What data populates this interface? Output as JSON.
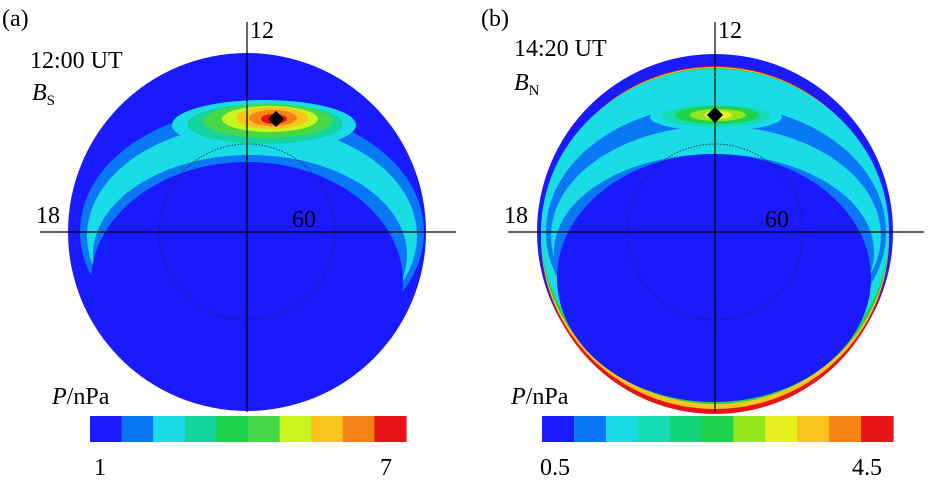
{
  "panels": [
    {
      "id": "a",
      "label": "(a)",
      "time": "12:00 UT",
      "field_main": "B",
      "field_sub": "S",
      "mlt_noon": "12",
      "mlt_dusk": "18",
      "lat_circle": "60",
      "colorbar_var": "P",
      "colorbar_unit": "/nPa",
      "colorbar_min": "1",
      "colorbar_max": "7",
      "colorbar_colors": [
        "#1a1aff",
        "#0a78f5",
        "#19dce6",
        "#14d39e",
        "#1ed34a",
        "#46d846",
        "#c8f51e",
        "#fac41e",
        "#f58214",
        "#e61414"
      ]
    },
    {
      "id": "b",
      "label": "(b)",
      "time": "14:20 UT",
      "field_main": "B",
      "field_sub": "N",
      "mlt_noon": "12",
      "mlt_dusk": "18",
      "lat_circle": "60",
      "colorbar_var": "P",
      "colorbar_unit": "/nPa",
      "colorbar_min": "0.5",
      "colorbar_max": "4.5",
      "colorbar_colors": [
        "#1a1aff",
        "#0a78f5",
        "#19dce6",
        "#14dcb4",
        "#14d378",
        "#1ed34a",
        "#96e61e",
        "#e6f01e",
        "#fac41e",
        "#f58214",
        "#e61414"
      ]
    }
  ]
}
